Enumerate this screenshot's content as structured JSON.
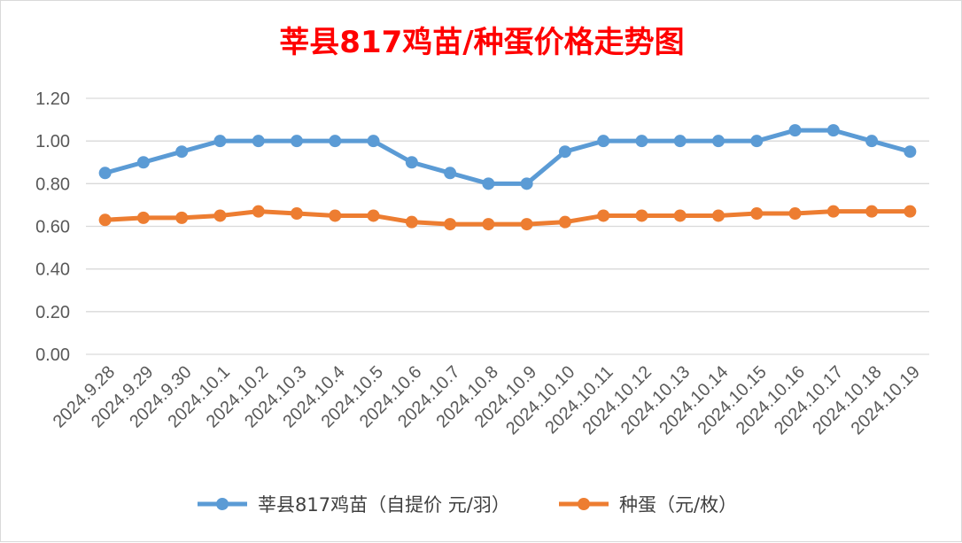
{
  "chart_data": {
    "type": "line",
    "title": "莘县817鸡苗/种蛋价格走势图",
    "categories": [
      "2024.9.28",
      "2024.9.29",
      "2024.9.30",
      "2024.10.1",
      "2024.10.2",
      "2024.10.3",
      "2024.10.4",
      "2024.10.5",
      "2024.10.6",
      "2024.10.7",
      "2024.10.8",
      "2024.10.9",
      "2024.10.10",
      "2024.10.11",
      "2024.10.12",
      "2024.10.13",
      "2024.10.14",
      "2024.10.15",
      "2024.10.16",
      "2024.10.17",
      "2024.10.18",
      "2024.10.19"
    ],
    "series": [
      {
        "name": "莘县817鸡苗（自提价 元/羽）",
        "color": "#5b9bd5",
        "values": [
          0.85,
          0.9,
          0.95,
          1.0,
          1.0,
          1.0,
          1.0,
          1.0,
          0.9,
          0.85,
          0.8,
          0.8,
          0.95,
          1.0,
          1.0,
          1.0,
          1.0,
          1.0,
          1.05,
          1.05,
          1.0,
          0.95
        ]
      },
      {
        "name": "种蛋（元/枚）",
        "color": "#ed7d31",
        "values": [
          0.63,
          0.64,
          0.64,
          0.65,
          0.67,
          0.66,
          0.65,
          0.65,
          0.62,
          0.61,
          0.61,
          0.61,
          0.62,
          0.65,
          0.65,
          0.65,
          0.65,
          0.66,
          0.66,
          0.67,
          0.67,
          0.67
        ]
      }
    ],
    "ylim": [
      0,
      1.2
    ],
    "yticks": [
      "0.00",
      "0.20",
      "0.40",
      "0.60",
      "0.80",
      "1.00",
      "1.20"
    ],
    "grid": true,
    "legend_position": "bottom",
    "xlabel": "",
    "ylabel": ""
  }
}
